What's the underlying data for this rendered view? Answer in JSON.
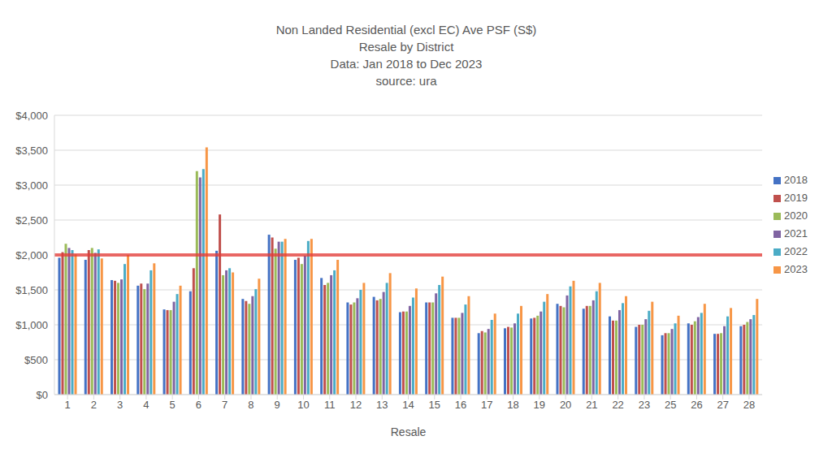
{
  "chart_data": {
    "type": "bar",
    "title": "Non Landed Residential (excl EC) Ave PSF (S$)",
    "subtitle": [
      "Resale by District",
      "Data: Jan 2018 to Dec 2023",
      "source: ura"
    ],
    "x_label": "Resale",
    "categories": [
      "1",
      "2",
      "3",
      "4",
      "5",
      "6",
      "7",
      "8",
      "9",
      "10",
      "11",
      "12",
      "13",
      "14",
      "15",
      "16",
      "17",
      "18",
      "19",
      "20",
      "21",
      "22",
      "23",
      "25",
      "26",
      "27",
      "28"
    ],
    "series": [
      {
        "name": "2018",
        "color": "#4472c4",
        "values": [
          1960,
          1930,
          1640,
          1560,
          1220,
          1480,
          2060,
          1370,
          2290,
          1930,
          1670,
          1320,
          1400,
          1180,
          1320,
          1100,
          880,
          950,
          1090,
          1300,
          1230,
          1120,
          970,
          850,
          1020,
          870,
          980
        ]
      },
      {
        "name": "2019",
        "color": "#c0504d",
        "values": [
          2040,
          2070,
          1630,
          1590,
          1210,
          1810,
          2580,
          1340,
          2250,
          1960,
          1570,
          1290,
          1350,
          1190,
          1320,
          1100,
          910,
          970,
          1100,
          1270,
          1270,
          1060,
          1000,
          880,
          1000,
          870,
          1000
        ]
      },
      {
        "name": "2020",
        "color": "#9bbb59",
        "values": [
          2160,
          2100,
          1600,
          1510,
          1210,
          3200,
          1710,
          1300,
          2090,
          1870,
          1600,
          1320,
          1370,
          1190,
          1320,
          1100,
          890,
          960,
          1130,
          1250,
          1270,
          1060,
          1000,
          880,
          1050,
          880,
          1040
        ]
      },
      {
        "name": "2021",
        "color": "#8064a2",
        "values": [
          2100,
          2030,
          1650,
          1590,
          1330,
          3110,
          1780,
          1410,
          2190,
          1990,
          1710,
          1380,
          1470,
          1270,
          1450,
          1170,
          940,
          1020,
          1190,
          1420,
          1350,
          1210,
          1080,
          940,
          1110,
          980,
          1080
        ]
      },
      {
        "name": "2022",
        "color": "#4bacc6",
        "values": [
          2070,
          2080,
          1870,
          1780,
          1440,
          3230,
          1810,
          1510,
          2190,
          2200,
          1780,
          1500,
          1600,
          1390,
          1570,
          1290,
          1070,
          1160,
          1330,
          1550,
          1480,
          1310,
          1200,
          1020,
          1170,
          1120,
          1140
        ]
      },
      {
        "name": "2023",
        "color": "#f79646",
        "values": [
          2010,
          1950,
          2000,
          1880,
          1560,
          3540,
          1750,
          1660,
          2230,
          2230,
          1930,
          1600,
          1740,
          1520,
          1690,
          1410,
          1160,
          1270,
          1440,
          1630,
          1600,
          1410,
          1330,
          1130,
          1300,
          1240,
          1370
        ]
      }
    ],
    "ylim": [
      0,
      4000
    ],
    "yticks": [
      {
        "value": 0,
        "label": "$0"
      },
      {
        "value": 500,
        "label": "$500"
      },
      {
        "value": 1000,
        "label": "$1,000"
      },
      {
        "value": 1500,
        "label": "$1,500"
      },
      {
        "value": 2000,
        "label": "$2,000"
      },
      {
        "value": 2500,
        "label": "$2,500"
      },
      {
        "value": 3000,
        "label": "$3,000"
      },
      {
        "value": 3500,
        "label": "$3,500"
      },
      {
        "value": 4000,
        "label": "$4,000"
      }
    ],
    "grid": true,
    "legend": "right",
    "reference_line": {
      "value": 2000,
      "color": "#e53935"
    }
  }
}
